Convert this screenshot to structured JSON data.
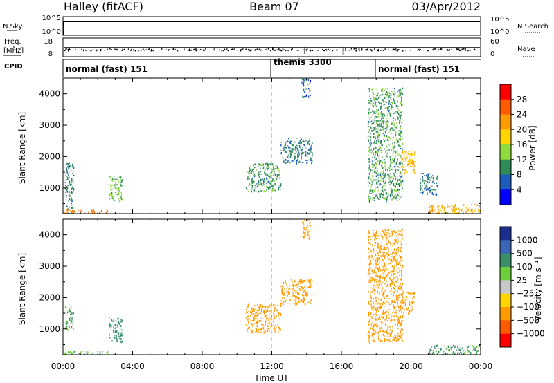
{
  "header": {
    "left": "Halley (fitACF)",
    "center": "Beam 07",
    "right": "03/Apr/2012"
  },
  "summary": {
    "left_labels": [
      "N.Sky",
      "Freq.",
      "[MHz]",
      "CPID"
    ],
    "right_labels": [
      "N.Search",
      "Nave"
    ],
    "nsky_ticks": [
      "10^5",
      "10^0"
    ],
    "nsearch_ticks": [
      "10^5",
      "10^0"
    ],
    "freq_ticks": [
      "18",
      "8"
    ],
    "nave_ticks": [
      "60",
      "0"
    ],
    "cpid_modes": [
      {
        "name": "normal (fast) 151",
        "start_hour": 0
      },
      {
        "name": "themis 3300",
        "start_hour": 12
      },
      {
        "name": "normal (fast) 151",
        "start_hour": 18
      }
    ]
  },
  "power_panel": {
    "ylabel": "Slant Range [km]",
    "colorbar_label": "Power [dB]",
    "colorbar_ticks": [
      "28",
      "24",
      "20",
      "16",
      "12",
      "8",
      "4"
    ],
    "colorbar_colors": [
      "#ff0000",
      "#ff5a00",
      "#ff9a00",
      "#ffd400",
      "#8fdc3c",
      "#2e8b57",
      "#1c5dbd",
      "#0000ff"
    ]
  },
  "velocity_panel": {
    "ylabel": "Slant Range [km]",
    "colorbar_label": "Velocity [m s⁻¹]",
    "colorbar_ticks": [
      "1000",
      "500",
      "100",
      "25",
      "−25",
      "−100",
      "−500",
      "−1000"
    ],
    "colorbar_colors": [
      "#1a2e8e",
      "#3a66b5",
      "#3a8f6a",
      "#6ecf3c",
      "#c8c8c8",
      "#ffd400",
      "#ff9a00",
      "#ff5a00",
      "#ff0000"
    ]
  },
  "xaxis": {
    "label": "Time UT",
    "ticks": [
      "00:00",
      "04:00",
      "08:00",
      "12:00",
      "16:00",
      "20:00",
      "00:00"
    ]
  },
  "y_ticks": [
    "1000",
    "2000",
    "3000",
    "4000"
  ],
  "chart_data": [
    {
      "type": "heatmap",
      "title": "Power",
      "xlabel": "Time UT",
      "ylabel": "Slant Range [km]",
      "xlim": [
        0,
        24
      ],
      "ylim": [
        180,
        4500
      ],
      "clim": [
        0,
        30
      ],
      "units": "dB",
      "regions": [
        {
          "t": [
            0.1,
            0.6
          ],
          "range": [
            200,
            1800
          ],
          "value": 8
        },
        {
          "t": [
            2.6,
            3.4
          ],
          "range": [
            600,
            1400
          ],
          "value": 12
        },
        {
          "t": [
            0,
            2.6
          ],
          "range": [
            200,
            320
          ],
          "value": 22
        },
        {
          "t": [
            10.5,
            12.5
          ],
          "range": [
            900,
            1800
          ],
          "value": 10
        },
        {
          "t": [
            12.5,
            14.3
          ],
          "range": [
            1800,
            2600
          ],
          "value": 8
        },
        {
          "t": [
            13.7,
            14.2
          ],
          "range": [
            3900,
            4500
          ],
          "value": 6
        },
        {
          "t": [
            17.5,
            19.5
          ],
          "range": [
            600,
            4200
          ],
          "value": 10
        },
        {
          "t": [
            19.4,
            20.2
          ],
          "range": [
            1500,
            2200
          ],
          "value": 18
        },
        {
          "t": [
            20.5,
            21.5
          ],
          "range": [
            800,
            1500
          ],
          "value": 8
        },
        {
          "t": [
            21,
            24
          ],
          "range": [
            200,
            500
          ],
          "value": 20
        }
      ]
    },
    {
      "type": "heatmap",
      "title": "Velocity",
      "xlabel": "Time UT",
      "ylabel": "Slant Range [km]",
      "xlim": [
        0,
        24
      ],
      "ylim": [
        180,
        4500
      ],
      "clim": [
        -1000,
        1000
      ],
      "units": "m s^-1",
      "regions": [
        {
          "t": [
            0.1,
            0.6
          ],
          "range": [
            1000,
            1800
          ],
          "value": 100
        },
        {
          "t": [
            2.6,
            3.4
          ],
          "range": [
            600,
            1400
          ],
          "value": 200
        },
        {
          "t": [
            0,
            2.6
          ],
          "range": [
            200,
            320
          ],
          "value": 60
        },
        {
          "t": [
            10.5,
            12.5
          ],
          "range": [
            900,
            1800
          ],
          "value": -300
        },
        {
          "t": [
            12.5,
            14.3
          ],
          "range": [
            1800,
            2600
          ],
          "value": -300
        },
        {
          "t": [
            13.7,
            14.2
          ],
          "range": [
            3900,
            4500
          ],
          "value": -400
        },
        {
          "t": [
            17.5,
            19.5
          ],
          "range": [
            600,
            4200
          ],
          "value": -250
        },
        {
          "t": [
            19.4,
            20.2
          ],
          "range": [
            1500,
            2200
          ],
          "value": -300
        },
        {
          "t": [
            21,
            24
          ],
          "range": [
            200,
            500
          ],
          "value": 150
        }
      ]
    }
  ]
}
